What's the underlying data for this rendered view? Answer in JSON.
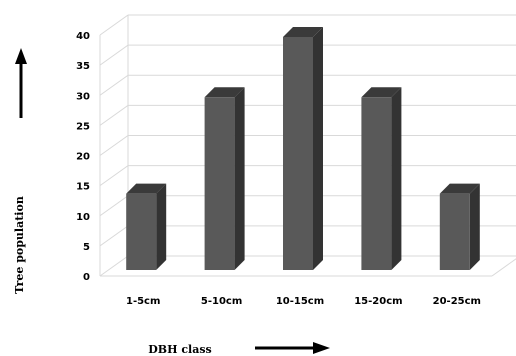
{
  "chart_data": {
    "type": "bar",
    "categories": [
      "1-5cm",
      "5-10cm",
      "10-15cm",
      "15-20cm",
      "20-25cm"
    ],
    "values": [
      14,
      30,
      40,
      30,
      14
    ],
    "ylim": [
      0,
      40
    ],
    "yticks": [
      0,
      5,
      10,
      15,
      20,
      25,
      30,
      35,
      40
    ],
    "xlabel": "DBH class",
    "ylabel": "Tree population",
    "grid": true,
    "bar_color": "#595959",
    "bar_side_color": "#333333",
    "bar_top_color": "#3a3a3a",
    "grid_color": "#d9d9d9"
  }
}
